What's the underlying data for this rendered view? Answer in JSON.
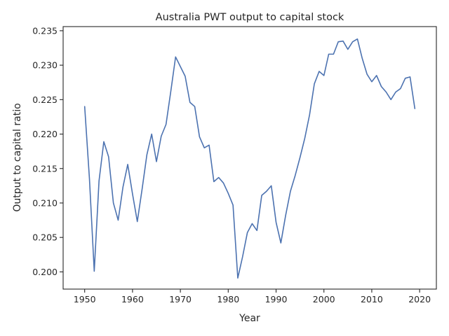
{
  "chart_data": {
    "type": "line",
    "title": "Australia PWT output to capital stock",
    "xlabel": "Year",
    "ylabel": "Output to capital ratio",
    "xlim": [
      1945.5,
      2023.5
    ],
    "ylim": [
      0.1975,
      0.2356
    ],
    "x_ticks": [
      1950,
      1960,
      1970,
      1980,
      1990,
      2000,
      2010,
      2020
    ],
    "y_ticks": [
      0.2,
      0.205,
      0.21,
      0.215,
      0.22,
      0.225,
      0.23,
      0.235
    ],
    "x_tick_labels": [
      "1950",
      "1960",
      "1970",
      "1980",
      "1990",
      "2000",
      "2010",
      "2020"
    ],
    "y_tick_labels": [
      "0.200",
      "0.205",
      "0.210",
      "0.215",
      "0.220",
      "0.225",
      "0.230",
      "0.235"
    ],
    "grid": false,
    "line_color": "#4c72b0",
    "series": [
      {
        "x": [
          1950,
          1951,
          1952,
          1953,
          1954,
          1955,
          1956,
          1957,
          1958,
          1959,
          1960,
          1961,
          1962,
          1963,
          1964,
          1965,
          1966,
          1967,
          1968,
          1969,
          1970,
          1971,
          1972,
          1973,
          1974,
          1975,
          1976,
          1977,
          1978,
          1979,
          1980,
          1981,
          1982,
          1983,
          1984,
          1985,
          1986,
          1987,
          1988,
          1989,
          1990,
          1991,
          1992,
          1993,
          1994,
          1995,
          1996,
          1997,
          1998,
          1999,
          2000,
          2001,
          2002,
          2003,
          2004,
          2005,
          2006,
          2007,
          2008,
          2009,
          2010,
          2011,
          2012,
          2013,
          2014,
          2015,
          2016,
          2017,
          2018,
          2019
        ],
        "values": [
          0.224,
          0.2135,
          0.2001,
          0.2132,
          0.2189,
          0.2167,
          0.21,
          0.2075,
          0.2123,
          0.2156,
          0.2113,
          0.2073,
          0.212,
          0.217,
          0.22,
          0.216,
          0.2197,
          0.2214,
          0.2262,
          0.2312,
          0.2298,
          0.2284,
          0.2246,
          0.224,
          0.2196,
          0.218,
          0.2184,
          0.2131,
          0.2137,
          0.2129,
          0.2114,
          0.2097,
          0.1991,
          0.2022,
          0.2057,
          0.207,
          0.206,
          0.2111,
          0.2117,
          0.2125,
          0.2072,
          0.2042,
          0.2082,
          0.2117,
          0.214,
          0.2166,
          0.2194,
          0.2228,
          0.2273,
          0.2291,
          0.2285,
          0.2316,
          0.2316,
          0.2334,
          0.2335,
          0.2323,
          0.2334,
          0.2338,
          0.231,
          0.2287,
          0.2276,
          0.2285,
          0.2269,
          0.2261,
          0.225,
          0.2261,
          0.2266,
          0.2281,
          0.2283,
          0.2237
        ]
      }
    ]
  }
}
